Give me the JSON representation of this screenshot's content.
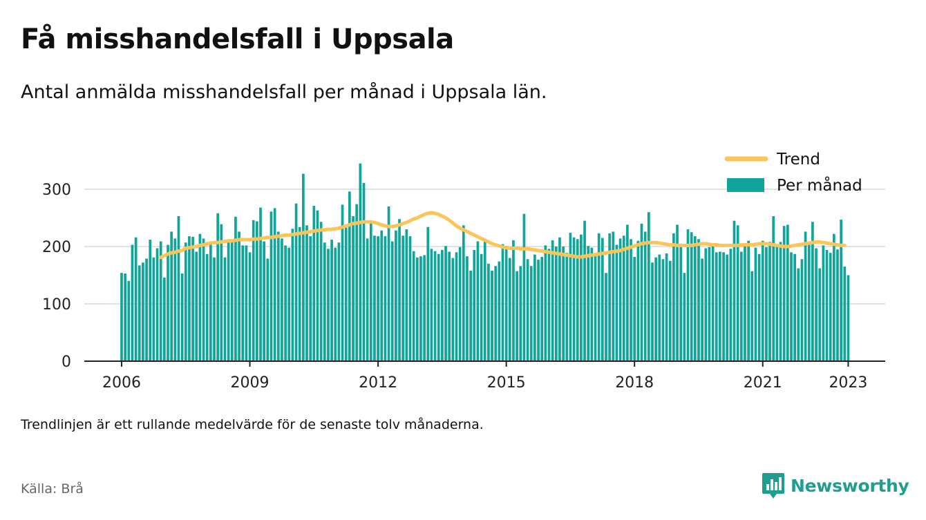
{
  "title": "Få misshandelsfall i Uppsala",
  "subtitle": "Antal anmälda misshandelsfall per månad i Uppsala län.",
  "footnote": "Trendlinjen är ett rullande medelvärde för de senaste tolv månaderna.",
  "source": "Källa: Brå",
  "brand": {
    "name": "Newsworthy",
    "icon": "newsworthy-logo-icon",
    "color": "#1f9e8f"
  },
  "colors": {
    "bars": "#0fa59a",
    "trend": "#fbc55a",
    "grid": "#d9d9d9",
    "axis": "#222222"
  },
  "chart_data": {
    "type": "bar",
    "title": "Få misshandelsfall i Uppsala",
    "subtitle": "Antal anmälda misshandelsfall per månad i Uppsala län.",
    "xlabel": "",
    "ylabel": "",
    "ylim": [
      0,
      350
    ],
    "yticks": [
      0,
      100,
      200,
      300
    ],
    "xticks": [
      "2006",
      "2009",
      "2012",
      "2015",
      "2018",
      "2021",
      "2023"
    ],
    "grid": true,
    "legend_position": "top-right",
    "start": "2006-01",
    "end": "2023-02",
    "series": [
      {
        "name": "Trend",
        "kind": "line",
        "color": "#fbc55a",
        "start": "2006-12",
        "values": [
          181,
          184,
          187,
          189,
          190,
          192,
          193,
          197,
          198,
          199,
          200,
          202,
          203,
          205,
          206,
          207,
          207,
          208,
          209,
          210,
          210,
          211,
          212,
          212,
          212,
          212,
          213,
          213,
          214,
          215,
          216,
          216,
          217,
          218,
          219,
          220,
          220,
          221,
          222,
          223,
          224,
          225,
          226,
          227,
          228,
          229,
          229,
          230,
          230,
          231,
          232,
          234,
          236,
          238,
          240,
          241,
          242,
          243,
          243,
          243,
          242,
          240,
          238,
          236,
          235,
          235,
          236,
          238,
          240,
          242,
          245,
          248,
          250,
          253,
          256,
          258,
          259,
          258,
          256,
          253,
          250,
          246,
          241,
          236,
          232,
          229,
          226,
          223,
          220,
          217,
          214,
          211,
          208,
          205,
          203,
          201,
          199,
          198,
          197,
          197,
          197,
          196,
          196,
          196,
          195,
          194,
          193,
          192,
          191,
          190,
          189,
          188,
          187,
          186,
          185,
          184,
          183,
          182,
          182,
          183,
          184,
          185,
          186,
          187,
          188,
          189,
          190,
          191,
          192,
          193,
          195,
          197,
          199,
          201,
          203,
          205,
          206,
          207,
          207,
          207,
          206,
          205,
          204,
          203,
          203,
          202,
          202,
          202,
          202,
          202,
          203,
          204,
          205,
          205,
          204,
          203,
          203,
          202,
          202,
          202,
          202,
          202,
          202,
          203,
          203,
          203,
          203,
          204,
          205,
          205,
          205,
          204,
          203,
          202,
          201,
          200,
          200,
          201,
          202,
          203,
          204,
          205,
          206,
          207,
          208,
          208,
          207,
          206,
          205,
          204,
          203,
          202,
          202
        ]
      },
      {
        "name": "Per månad",
        "kind": "bar",
        "color": "#0fa59a",
        "start": "2006-01",
        "values": [
          154,
          153,
          140,
          203,
          216,
          167,
          172,
          179,
          212,
          181,
          197,
          209,
          146,
          203,
          226,
          214,
          253,
          153,
          207,
          218,
          217,
          191,
          222,
          214,
          187,
          208,
          181,
          258,
          239,
          181,
          207,
          211,
          252,
          226,
          202,
          202,
          190,
          246,
          244,
          268,
          209,
          179,
          261,
          267,
          226,
          214,
          202,
          198,
          231,
          275,
          234,
          327,
          237,
          218,
          271,
          263,
          243,
          207,
          196,
          212,
          198,
          207,
          273,
          233,
          296,
          253,
          274,
          345,
          311,
          214,
          245,
          219,
          218,
          228,
          218,
          270,
          209,
          228,
          248,
          219,
          230,
          218,
          192,
          181,
          183,
          185,
          234,
          196,
          192,
          187,
          194,
          201,
          191,
          180,
          190,
          199,
          237,
          183,
          158,
          194,
          209,
          187,
          210,
          170,
          158,
          166,
          174,
          204,
          201,
          180,
          211,
          157,
          166,
          257,
          178,
          166,
          186,
          177,
          182,
          202,
          196,
          211,
          200,
          216,
          200,
          189,
          224,
          216,
          213,
          221,
          245,
          201,
          198,
          183,
          223,
          215,
          154,
          223,
          226,
          203,
          214,
          219,
          238,
          213,
          182,
          210,
          240,
          226,
          260,
          172,
          181,
          186,
          178,
          188,
          175,
          223,
          238,
          205,
          154,
          230,
          225,
          218,
          213,
          179,
          197,
          199,
          201,
          190,
          191,
          190,
          186,
          196,
          245,
          237,
          191,
          200,
          210,
          157,
          198,
          187,
          210,
          199,
          208,
          253,
          201,
          208,
          236,
          238,
          190,
          187,
          162,
          178,
          226,
          205,
          243,
          197,
          162,
          202,
          194,
          189,
          222,
          195,
          247,
          165,
          150
        ]
      }
    ]
  }
}
